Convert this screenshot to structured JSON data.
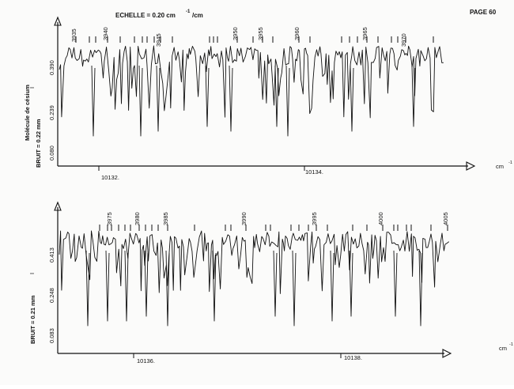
{
  "header": {
    "scale_label": "ECHELLE = 0.20 cm",
    "scale_exp": "-1",
    "scale_unit": "/cm",
    "page_label": "PAGE 60"
  },
  "chart_data": [
    {
      "type": "line",
      "title": "",
      "xlabel": "cm",
      "xlabel_exp": "-1",
      "ylabel": "I",
      "side_labels": [
        "Molécule de césium",
        "BRUIT = 0.22 mm"
      ],
      "y_ticks": [
        "0.390",
        "0.239",
        "0.080"
      ],
      "x_ticks": [
        {
          "label": "10132.",
          "value": 10132
        },
        {
          "label": "10134.",
          "value": 10134
        }
      ],
      "line_ids": [
        "3935",
        "3940",
        "3945",
        "3950",
        "3955",
        "3960",
        "3965",
        "3970"
      ],
      "grid": false
    },
    {
      "type": "line",
      "title": "",
      "xlabel": "cm",
      "xlabel_exp": "-1",
      "ylabel": "I",
      "side_labels": [
        "BRUIT = 0.21 mm"
      ],
      "y_ticks": [
        "0.413",
        "0.248",
        "0.083"
      ],
      "x_ticks": [
        {
          "label": "10136.",
          "value": 10136
        },
        {
          "label": "10138.",
          "value": 10138
        }
      ],
      "line_ids": [
        "3975",
        "3980",
        "3985",
        "3990",
        "3995",
        "4000",
        "4005"
      ],
      "grid": false
    }
  ]
}
